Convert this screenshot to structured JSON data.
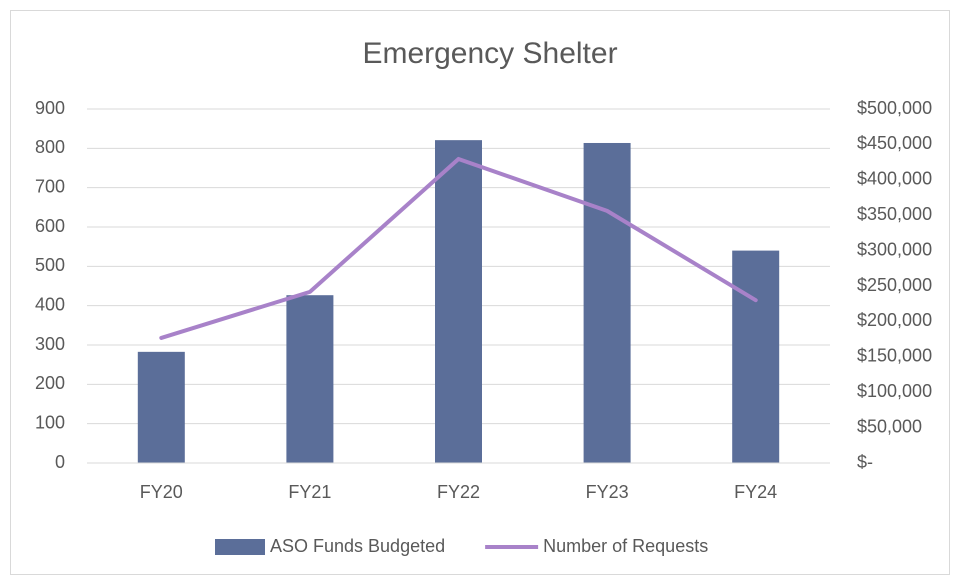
{
  "chart_data": {
    "type": "bar_line",
    "title": "Emergency Shelter",
    "categories": [
      "FY20",
      "FY21",
      "FY22",
      "FY23",
      "FY24"
    ],
    "series": [
      {
        "name": "ASO Funds Budgeted",
        "type": "bar",
        "color": "#5b6e99",
        "axis": "y2",
        "values": [
          157000,
          237000,
          456000,
          452000,
          300000
        ]
      },
      {
        "name": "Number of Requests",
        "type": "line",
        "color": "#a882c9",
        "axis": "y",
        "values": [
          318,
          435,
          773,
          641,
          414
        ]
      }
    ],
    "ylim": [
      0,
      900
    ],
    "yticks": [
      0,
      100,
      200,
      300,
      400,
      500,
      600,
      700,
      800,
      900
    ],
    "y2lim": [
      0,
      500000
    ],
    "y2ticks": [
      {
        "value": 0,
        "label": "$-"
      },
      {
        "value": 50000,
        "label": "$50,000"
      },
      {
        "value": 100000,
        "label": "$100,000"
      },
      {
        "value": 150000,
        "label": "$150,000"
      },
      {
        "value": 200000,
        "label": "$200,000"
      },
      {
        "value": 250000,
        "label": "$250,000"
      },
      {
        "value": 300000,
        "label": "$300,000"
      },
      {
        "value": 350000,
        "label": "$350,000"
      },
      {
        "value": 400000,
        "label": "$400,000"
      },
      {
        "value": 450000,
        "label": "$450,000"
      },
      {
        "value": 500000,
        "label": "$500,000"
      }
    ],
    "grid": true,
    "legend": "bottom"
  }
}
